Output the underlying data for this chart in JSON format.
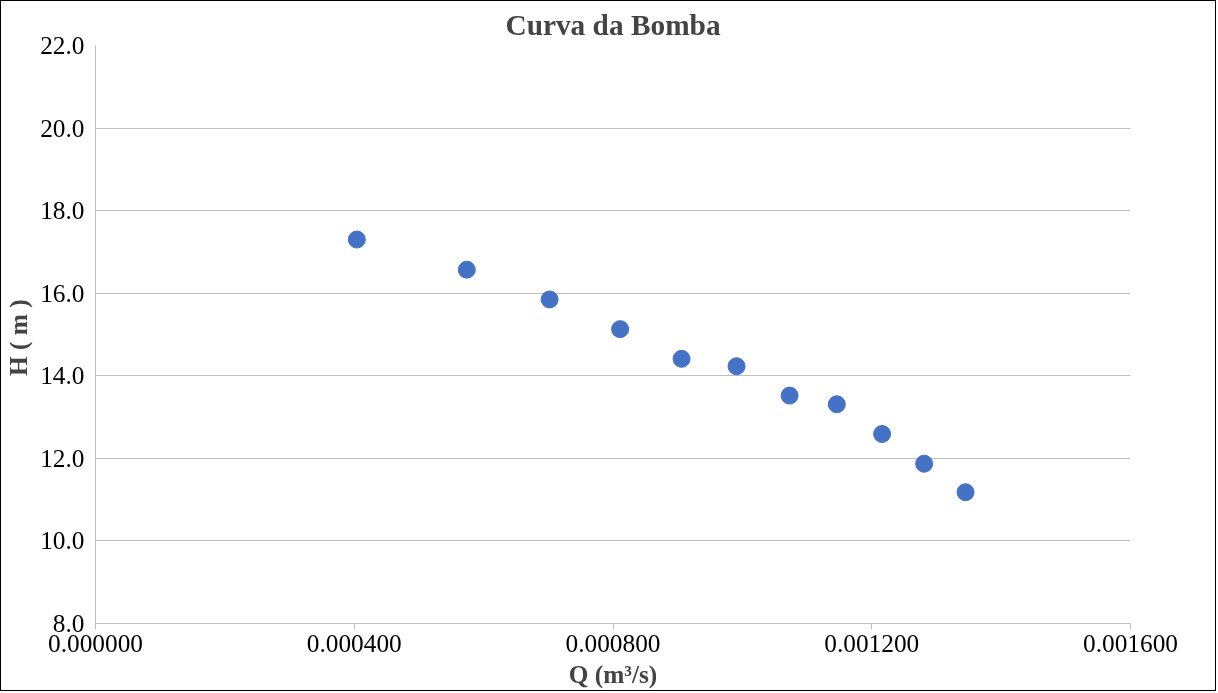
{
  "chart_data": {
    "type": "scatter",
    "title": "Curva da Bomba",
    "xlabel": "Q (m³/s)",
    "ylabel": "H  ( m )",
    "x": [
      0.000404,
      0.000574,
      0.000702,
      0.000811,
      0.000906,
      0.000991,
      0.001073,
      0.001146,
      0.001216,
      0.001281,
      0.001345
    ],
    "series": [
      {
        "color": "#4472c4",
        "values": [
          17.3,
          16.57,
          15.85,
          15.13,
          14.41,
          14.23,
          13.52,
          13.31,
          12.59,
          11.87,
          11.18
        ]
      }
    ],
    "xlim": [
      0,
      0.0016
    ],
    "xticks": [
      {
        "value": 0,
        "label": "0.000000"
      },
      {
        "value": 0.0004,
        "label": "0.000400"
      },
      {
        "value": 0.0008,
        "label": "0.000800"
      },
      {
        "value": 0.0012,
        "label": "0.001200"
      },
      {
        "value": 0.0016,
        "label": "0.001600"
      }
    ],
    "ylim": [
      8,
      22
    ],
    "yticks": [
      {
        "value": 8,
        "label": "8.0"
      },
      {
        "value": 10,
        "label": "10.0"
      },
      {
        "value": 12,
        "label": "12.0"
      },
      {
        "value": 14,
        "label": "14.0"
      },
      {
        "value": 16,
        "label": "16.0"
      },
      {
        "value": 18,
        "label": "18.0"
      },
      {
        "value": 20,
        "label": "20.0"
      },
      {
        "value": 22,
        "label": "22.0"
      }
    ],
    "grid": "y",
    "marker": "circle"
  }
}
